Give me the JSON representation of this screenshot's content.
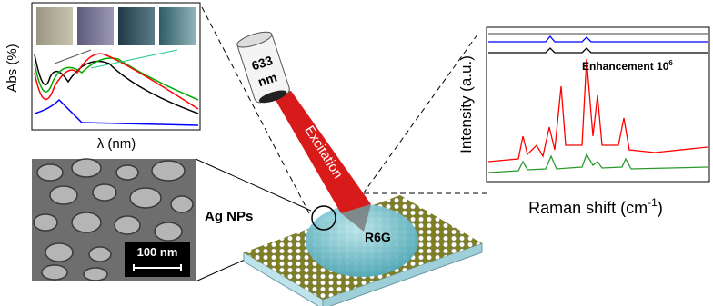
{
  "absorbance_panel": {
    "y_label": "Abs (%)",
    "x_label": "λ (nm)"
  },
  "laser": {
    "wavelength": "633",
    "unit": "nm",
    "label": "Excitation"
  },
  "sem_image": {
    "scale_bar": "100 nm"
  },
  "substrate": {
    "particles_label": "Ag NPs",
    "analyte_label": "R6G"
  },
  "raman_panel": {
    "y_label": "Intensity (a.u.)",
    "x_label_main": "Raman shift (cm",
    "x_label_sup": "-1",
    "x_label_end": ")",
    "annotation_main": "Enhancement 10",
    "annotation_sup": "6"
  }
}
